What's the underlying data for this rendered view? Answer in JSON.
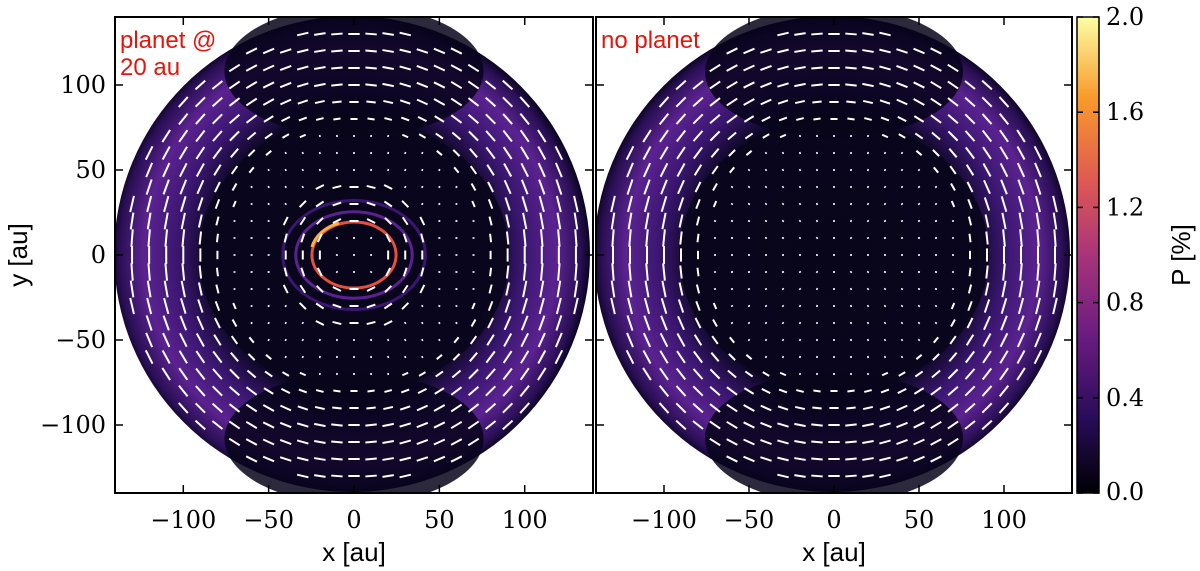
{
  "chart_data": [
    {
      "type": "heatmap",
      "annotation_lines": [
        "planet @",
        "20 au"
      ],
      "xlabel": "x [au]",
      "ylabel": "y [au]",
      "xlim": [
        -140,
        140
      ],
      "ylim": [
        -140,
        140
      ],
      "xticks": [
        -100,
        -50,
        0,
        50,
        100
      ],
      "yticks": [
        100,
        50,
        0,
        -50,
        -100
      ],
      "xtick_labels": [
        "−100",
        "−50",
        "0",
        "50",
        "100"
      ],
      "ytick_labels": [
        "100",
        "50",
        "0",
        "−50",
        "−100"
      ],
      "disk_radius_au": 138,
      "polarization_ring_au": [
        100,
        138
      ],
      "planet_gap_ring_au": 22,
      "vector_spacing_au": 10
    },
    {
      "type": "heatmap",
      "annotation_lines": [
        "no planet"
      ],
      "xlabel": "x [au]",
      "xlim": [
        -140,
        140
      ],
      "ylim": [
        -140,
        140
      ],
      "xticks": [
        -100,
        -50,
        0,
        50,
        100
      ],
      "xtick_labels": [
        "−100",
        "−50",
        "0",
        "50",
        "100"
      ],
      "disk_radius_au": 138,
      "polarization_ring_au": [
        100,
        138
      ],
      "vector_spacing_au": 10
    }
  ],
  "colorbar": {
    "label": "P [%]",
    "range": [
      0.0,
      2.0
    ],
    "ticks": [
      2.0,
      1.6,
      1.2,
      0.8,
      0.4,
      0.0
    ],
    "tick_labels": [
      "2.0",
      "1.6",
      "1.2",
      "0.8",
      "0.4",
      "0.0"
    ],
    "colors": [
      "#000004",
      "#2a0c5a",
      "#6a1c80",
      "#a8347a",
      "#e05a52",
      "#f99a2c",
      "#fcffa4"
    ]
  }
}
